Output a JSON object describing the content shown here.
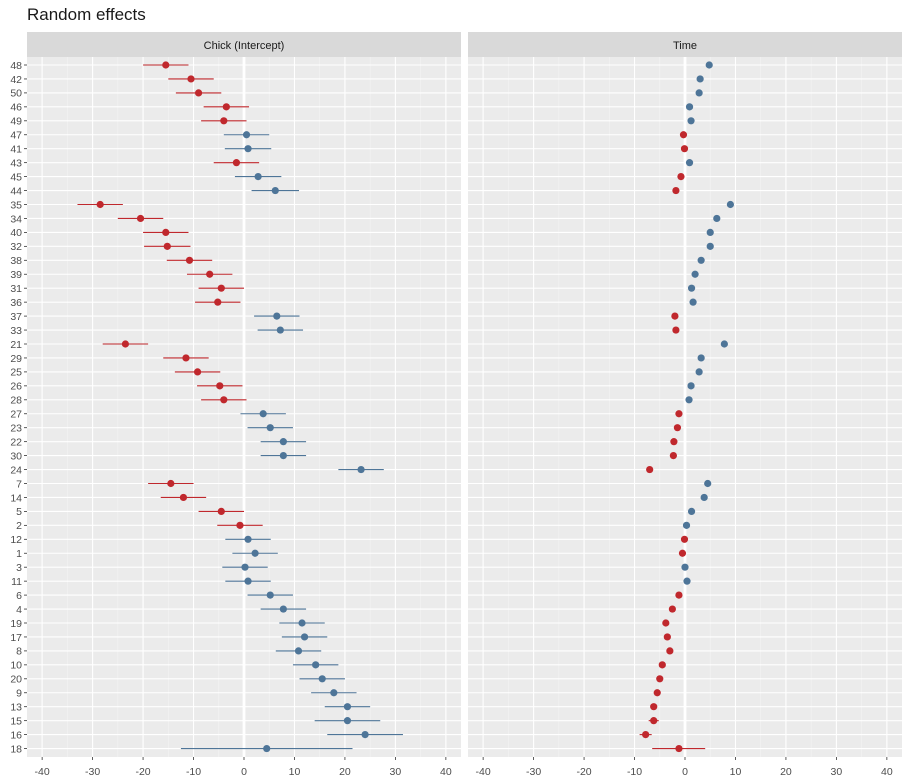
{
  "title": "Random effects",
  "chart_data": {
    "type": "scatter",
    "subtype": "dot-and-whisker (random effects with intervals)",
    "title": "Random effects",
    "facets": [
      "Chick (Intercept)",
      "Time"
    ],
    "xlim": [
      -43,
      43
    ],
    "x_ticks": [
      -40,
      -30,
      -20,
      -10,
      0,
      10,
      20,
      30,
      40
    ],
    "grid": true,
    "zero_line": true,
    "colors": {
      "positive": "#4E7598",
      "negative": "#C0282D",
      "background": "#EBEBEB",
      "strip": "#D9D9D9"
    },
    "categories": [
      "48",
      "42",
      "50",
      "46",
      "49",
      "47",
      "41",
      "43",
      "45",
      "44",
      "35",
      "34",
      "40",
      "32",
      "38",
      "39",
      "31",
      "36",
      "37",
      "33",
      "21",
      "29",
      "25",
      "26",
      "28",
      "27",
      "23",
      "22",
      "30",
      "24",
      "7",
      "14",
      "5",
      "2",
      "12",
      "1",
      "3",
      "11",
      "6",
      "4",
      "19",
      "17",
      "8",
      "10",
      "20",
      "9",
      "13",
      "15",
      "16",
      "18"
    ],
    "panels": [
      {
        "name": "Chick (Intercept)",
        "estimate": [
          -15.5,
          -10.5,
          -9.0,
          -3.5,
          -4.0,
          0.5,
          0.8,
          -1.5,
          2.8,
          6.2,
          -28.5,
          -20.5,
          -15.5,
          -15.2,
          -10.8,
          -6.8,
          -4.5,
          -5.2,
          6.5,
          7.2,
          -23.5,
          -11.5,
          -9.2,
          -4.8,
          -4.0,
          3.8,
          5.2,
          7.8,
          7.8,
          23.2,
          -14.5,
          -12.0,
          -4.5,
          -0.8,
          0.8,
          2.2,
          0.2,
          0.8,
          5.2,
          7.8,
          11.5,
          12.0,
          10.8,
          14.2,
          15.5,
          17.8,
          20.5,
          20.5,
          24.0,
          4.5
        ],
        "lower": [
          -20.0,
          -15.0,
          -13.5,
          -8.0,
          -8.5,
          -4.0,
          -3.8,
          -6.0,
          -1.8,
          1.5,
          -33.0,
          -25.0,
          -20.0,
          -19.8,
          -15.3,
          -11.3,
          -9.0,
          -9.7,
          2.0,
          2.7,
          -28.0,
          -16.0,
          -13.7,
          -9.3,
          -8.5,
          -0.7,
          0.7,
          3.3,
          3.3,
          18.7,
          -19.0,
          -16.5,
          -9.0,
          -5.3,
          -3.7,
          -2.3,
          -4.3,
          -3.7,
          0.7,
          3.3,
          7.0,
          7.5,
          6.3,
          9.7,
          11.0,
          13.3,
          16.0,
          14.0,
          16.5,
          -12.5
        ],
        "upper": [
          -11.0,
          -6.0,
          -4.5,
          1.0,
          0.5,
          5.0,
          5.4,
          3.0,
          7.4,
          10.9,
          -24.0,
          -16.0,
          -11.0,
          -10.6,
          -6.3,
          -2.3,
          0.0,
          -0.7,
          11.0,
          11.7,
          -19.0,
          -7.0,
          -4.7,
          -0.3,
          0.5,
          8.3,
          9.7,
          12.3,
          12.3,
          27.7,
          -10.0,
          -7.5,
          0.0,
          3.7,
          5.3,
          6.7,
          4.7,
          5.3,
          9.7,
          12.3,
          16.0,
          16.5,
          15.3,
          18.7,
          20.0,
          22.3,
          25.0,
          27.0,
          31.5,
          21.5
        ]
      },
      {
        "name": "Time",
        "estimate": [
          4.8,
          3.0,
          2.8,
          0.9,
          1.2,
          -0.3,
          -0.1,
          0.9,
          -0.8,
          -1.8,
          9.0,
          6.3,
          5.0,
          5.0,
          3.2,
          2.0,
          1.3,
          1.6,
          -2.0,
          -1.8,
          7.8,
          3.2,
          2.8,
          1.2,
          0.8,
          -1.2,
          -1.5,
          -2.2,
          -2.3,
          -7.0,
          4.5,
          3.8,
          1.3,
          0.3,
          -0.1,
          -0.5,
          0.0,
          0.4,
          -1.2,
          -2.5,
          -3.8,
          -3.5,
          -3.0,
          -4.5,
          -5.0,
          -5.5,
          -6.2,
          -6.2,
          -7.8,
          -1.2
        ],
        "lower": [
          4.5,
          2.7,
          2.5,
          0.6,
          0.9,
          -0.6,
          -0.4,
          0.6,
          -1.1,
          -2.1,
          8.7,
          6.0,
          4.7,
          4.7,
          2.9,
          1.7,
          1.0,
          1.3,
          -2.3,
          -2.1,
          7.5,
          2.9,
          2.5,
          0.9,
          0.5,
          -1.5,
          -1.8,
          -2.5,
          -2.6,
          -7.3,
          4.2,
          3.5,
          1.0,
          0.0,
          -0.4,
          -0.8,
          -0.3,
          0.1,
          -1.5,
          -2.8,
          -4.1,
          -3.8,
          -3.3,
          -4.8,
          -5.3,
          -5.8,
          -6.7,
          -7.2,
          -9.0,
          -6.5
        ],
        "upper": [
          5.1,
          3.3,
          3.1,
          1.2,
          1.5,
          0.0,
          0.2,
          1.2,
          -0.5,
          -1.5,
          9.3,
          6.6,
          5.3,
          5.3,
          3.5,
          2.3,
          1.6,
          1.9,
          -1.7,
          -1.5,
          8.1,
          3.5,
          3.1,
          1.5,
          1.1,
          -0.9,
          -1.2,
          -1.9,
          -2.0,
          -6.7,
          4.8,
          4.1,
          1.6,
          0.6,
          0.2,
          -0.2,
          0.3,
          0.7,
          -0.9,
          -2.2,
          -3.5,
          -3.2,
          -2.7,
          -4.2,
          -4.7,
          -5.2,
          -5.7,
          -5.2,
          -6.6,
          4.0
        ]
      }
    ]
  }
}
